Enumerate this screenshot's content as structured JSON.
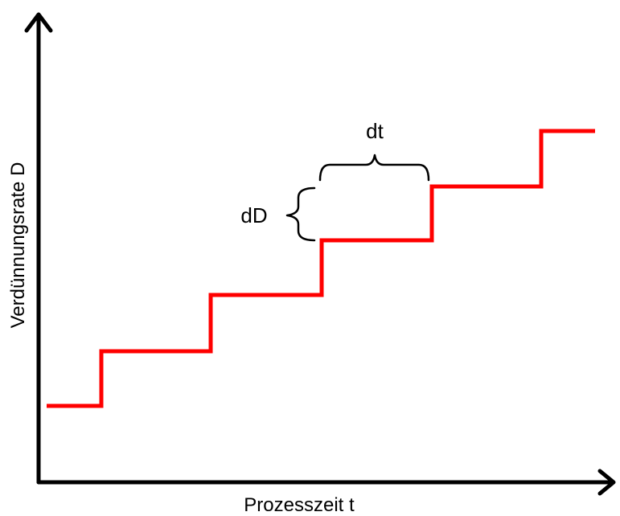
{
  "x_axis_label": "Prozesszeit t",
  "y_axis_label": "Verdünnungsrate D",
  "step_annotation": {
    "width_label": "dt",
    "height_label": "dD"
  },
  "colors": {
    "step_line": "#ff0000",
    "axes": "#000000"
  },
  "steps": {
    "count": 5,
    "direction": "increasing"
  }
}
